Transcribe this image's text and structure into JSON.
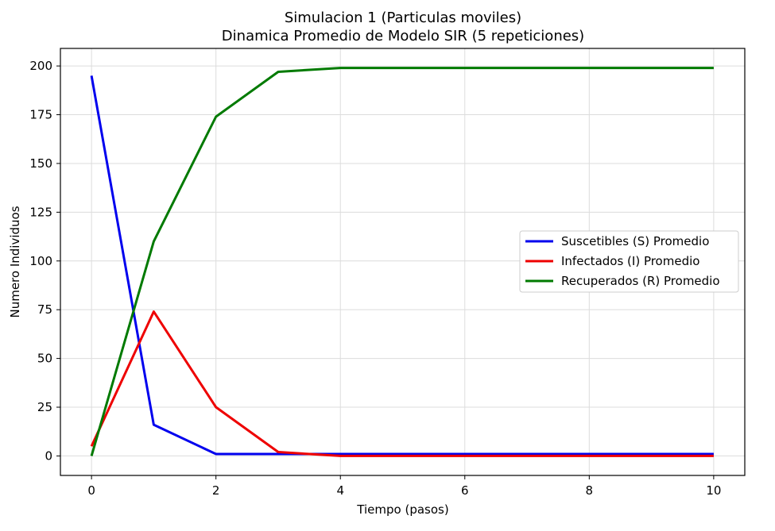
{
  "chart_data": {
    "type": "line",
    "title": [
      "Simulacion 1 (Particulas moviles)",
      "Dinamica Promedio de Modelo SIR (5 repeticiones)"
    ],
    "xlabel": "Tiempo (pasos)",
    "ylabel": "Numero Individuos",
    "xlim": [
      -0.5,
      10.5
    ],
    "ylim": [
      -10,
      209
    ],
    "xticks": [
      0,
      2,
      4,
      6,
      8,
      10
    ],
    "yticks": [
      0,
      25,
      50,
      75,
      100,
      125,
      150,
      175,
      200
    ],
    "grid": true,
    "legend_position": "center-right",
    "x": [
      0,
      1,
      2,
      3,
      4,
      5,
      6,
      7,
      8,
      9,
      10
    ],
    "series": [
      {
        "name": "Suscetibles (S) Promedio",
        "color": "#0000ee",
        "values": [
          195,
          16,
          1,
          1,
          1,
          1,
          1,
          1,
          1,
          1,
          1
        ]
      },
      {
        "name": "Infectados (I) Promedio",
        "color": "#ee0000",
        "values": [
          5,
          74,
          25,
          2,
          0,
          0,
          0,
          0,
          0,
          0,
          0
        ]
      },
      {
        "name": "Recuperados (R) Promedio",
        "color": "#007a00",
        "values": [
          0,
          110,
          174,
          197,
          199,
          199,
          199,
          199,
          199,
          199,
          199
        ]
      }
    ]
  }
}
